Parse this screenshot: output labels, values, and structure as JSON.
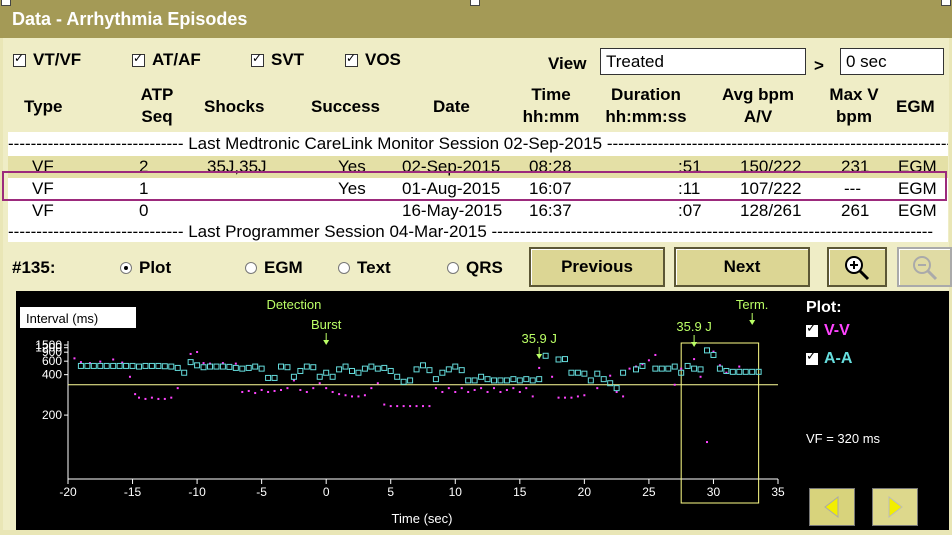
{
  "window": {
    "title": "Data - Arrhythmia Episodes"
  },
  "filters": [
    {
      "label": "VT/VF",
      "checked": true
    },
    {
      "label": "AT/AF",
      "checked": true
    },
    {
      "label": "SVT",
      "checked": true
    },
    {
      "label": "VOS",
      "checked": true
    }
  ],
  "view": {
    "label": "View",
    "value": "Treated",
    "gt": ">",
    "threshold": "0 sec"
  },
  "columns": {
    "type": "Type",
    "atp1": "ATP",
    "atp2": "Seq",
    "shocks": "Shocks",
    "success": "Success",
    "date": "Date",
    "time1": "Time",
    "time2": "hh:mm",
    "dur1": "Duration",
    "dur2": "hh:mm:ss",
    "avg1": "Avg bpm",
    "avg2": "A/V",
    "maxv1": "Max V",
    "maxv2": "bpm",
    "egm": "EGM"
  },
  "sessions": {
    "carelink": "Last Medtronic CareLink Monitor Session 02-Sep-2015",
    "programmer": "Last Programmer Session 04-Mar-2015"
  },
  "rows": [
    {
      "type": "VF",
      "atp": "2",
      "shocks": "35J,35J",
      "success": "Yes",
      "date": "02-Sep-2015",
      "time": "08:28",
      "duration": ":51",
      "avg": "150/222",
      "maxv": "231",
      "egm": "EGM"
    },
    {
      "type": "VF",
      "atp": "1",
      "shocks": "",
      "success": "Yes",
      "date": "01-Aug-2015",
      "time": "16:07",
      "duration": ":11",
      "avg": "107/222",
      "maxv": "---",
      "egm": "EGM"
    },
    {
      "type": "VF",
      "atp": "0",
      "shocks": "",
      "success": "",
      "date": "16-May-2015",
      "time": "16:37",
      "duration": ":07",
      "avg": "128/261",
      "maxv": "261",
      "egm": "EGM"
    }
  ],
  "episode": {
    "label": "#135:"
  },
  "display_modes": [
    {
      "label": "Plot",
      "selected": true
    },
    {
      "label": "EGM",
      "selected": false
    },
    {
      "label": "Text",
      "selected": false
    },
    {
      "label": "QRS",
      "selected": false
    }
  ],
  "buttons": {
    "previous": "Previous",
    "next": "Next",
    "zoom_in_icon": "zoom-in-icon",
    "zoom_out_icon": "zoom-out-icon"
  },
  "plot_legend": {
    "title": "Plot:",
    "vv": "V-V",
    "aa": "A-A",
    "vf_zone": "VF = 320 ms"
  },
  "colors": {
    "vv": "#ff44ff",
    "aa": "#66dddd",
    "annotation": "#bbff66",
    "window_title_bg": "#a49a56",
    "highlight": "#9c2a7c"
  },
  "chart_data": {
    "type": "scatter",
    "xlabel": "Time (sec)",
    "ylabel": "Interval (ms)",
    "xlim": [
      -20,
      35
    ],
    "x_ticks": [
      -20,
      -15,
      -10,
      -5,
      0,
      5,
      10,
      15,
      20,
      25,
      30,
      35
    ],
    "y_ticks": [
      200,
      400,
      600,
      900,
      1200,
      1500
    ],
    "y_scale": "reciprocal",
    "vf_threshold_ms": 320,
    "annotations": [
      {
        "text": "Detection",
        "x": -2.5
      },
      {
        "text": "Burst",
        "x": 0
      },
      {
        "text": "35.9 J",
        "x": 16.5
      },
      {
        "text": "35.9 J",
        "x": 28.5
      },
      {
        "text": "Term.",
        "x": 33
      }
    ],
    "series": [
      {
        "name": "V-V",
        "points": [
          [
            -19.5,
            670
          ],
          [
            -19,
            580
          ],
          [
            -18.3,
            560
          ],
          [
            -17.5,
            590
          ],
          [
            -16.5,
            640
          ],
          [
            -15.8,
            570
          ],
          [
            -15.2,
            380
          ],
          [
            -14.8,
            270
          ],
          [
            -14.5,
            255
          ],
          [
            -14,
            250
          ],
          [
            -13.5,
            255
          ],
          [
            -13,
            250
          ],
          [
            -12.5,
            250
          ],
          [
            -12,
            255
          ],
          [
            -11.5,
            300
          ],
          [
            -10.5,
            820
          ],
          [
            -10,
            910
          ],
          [
            -9.5,
            560
          ],
          [
            -9,
            550
          ],
          [
            -8,
            560
          ],
          [
            -7,
            550
          ],
          [
            -6.5,
            280
          ],
          [
            -6,
            285
          ],
          [
            -5.5,
            275
          ],
          [
            -5,
            290
          ],
          [
            -4.5,
            280
          ],
          [
            -4,
            285
          ],
          [
            -3.5,
            290
          ],
          [
            -3,
            300
          ],
          [
            -2.5,
            350
          ],
          [
            -2,
            290
          ],
          [
            -1.5,
            280
          ],
          [
            -1,
            300
          ],
          [
            -0.5,
            330
          ],
          [
            0,
            300
          ],
          [
            0.5,
            280
          ],
          [
            1,
            270
          ],
          [
            1.5,
            265
          ],
          [
            2,
            260
          ],
          [
            2.5,
            260
          ],
          [
            3,
            265
          ],
          [
            3.5,
            300
          ],
          [
            4,
            330
          ],
          [
            4.5,
            230
          ],
          [
            5,
            225
          ],
          [
            5.5,
            225
          ],
          [
            6,
            225
          ],
          [
            6.5,
            225
          ],
          [
            7,
            225
          ],
          [
            7.5,
            225
          ],
          [
            8,
            225
          ],
          [
            8.5,
            300
          ],
          [
            9,
            280
          ],
          [
            9.5,
            300
          ],
          [
            10,
            280
          ],
          [
            10.5,
            300
          ],
          [
            11,
            280
          ],
          [
            11.5,
            290
          ],
          [
            12,
            300
          ],
          [
            12.5,
            280
          ],
          [
            13,
            300
          ],
          [
            13.5,
            280
          ],
          [
            14,
            290
          ],
          [
            14.5,
            300
          ],
          [
            15,
            280
          ],
          [
            15.5,
            300
          ],
          [
            16,
            260
          ],
          [
            16.5,
            480
          ],
          [
            17.5,
            380
          ],
          [
            18,
            255
          ],
          [
            18.5,
            255
          ],
          [
            19,
            255
          ],
          [
            19.5,
            260
          ],
          [
            20,
            265
          ],
          [
            21,
            300
          ],
          [
            22,
            390
          ],
          [
            22.5,
            280
          ],
          [
            23,
            260
          ],
          [
            23.5,
            470
          ],
          [
            24,
            500
          ],
          [
            24.5,
            540
          ],
          [
            25,
            620
          ],
          [
            25.5,
            780
          ],
          [
            27,
            320
          ],
          [
            27.5,
            470
          ],
          [
            28.5,
            650
          ],
          [
            29,
            380
          ],
          [
            29.5,
            150
          ],
          [
            30,
            930
          ],
          [
            30.5,
            520
          ],
          [
            31,
            420
          ],
          [
            32,
            500
          ]
        ]
      },
      {
        "name": "A-A",
        "points": [
          [
            -19,
            510
          ],
          [
            -18.5,
            510
          ],
          [
            -18,
            510
          ],
          [
            -17.5,
            510
          ],
          [
            -17,
            510
          ],
          [
            -16.5,
            510
          ],
          [
            -16,
            510
          ],
          [
            -15.5,
            510
          ],
          [
            -15,
            510
          ],
          [
            -14.5,
            500
          ],
          [
            -14,
            510
          ],
          [
            -13.5,
            510
          ],
          [
            -13,
            510
          ],
          [
            -12.5,
            505
          ],
          [
            -12,
            500
          ],
          [
            -11.5,
            480
          ],
          [
            -11,
            420
          ],
          [
            -10.5,
            580
          ],
          [
            -10,
            520
          ],
          [
            -9.5,
            490
          ],
          [
            -9,
            500
          ],
          [
            -8.5,
            500
          ],
          [
            -8,
            500
          ],
          [
            -7.5,
            495
          ],
          [
            -7,
            480
          ],
          [
            -6.5,
            470
          ],
          [
            -6,
            480
          ],
          [
            -5.5,
            500
          ],
          [
            -5,
            470
          ],
          [
            -4.5,
            370
          ],
          [
            -4,
            370
          ],
          [
            -3.5,
            500
          ],
          [
            -3,
            490
          ],
          [
            -2.5,
            380
          ],
          [
            -2,
            440
          ],
          [
            -1.5,
            500
          ],
          [
            -1,
            490
          ],
          [
            -0.5,
            380
          ],
          [
            0,
            420
          ],
          [
            0.5,
            380
          ],
          [
            1,
            460
          ],
          [
            1.5,
            500
          ],
          [
            2,
            440
          ],
          [
            2.5,
            420
          ],
          [
            3,
            470
          ],
          [
            3.5,
            500
          ],
          [
            4,
            470
          ],
          [
            4.5,
            480
          ],
          [
            5,
            440
          ],
          [
            5.5,
            380
          ],
          [
            6,
            340
          ],
          [
            6.5,
            350
          ],
          [
            7,
            460
          ],
          [
            7.5,
            520
          ],
          [
            8,
            450
          ],
          [
            8.5,
            360
          ],
          [
            9,
            420
          ],
          [
            9.5,
            460
          ],
          [
            10,
            500
          ],
          [
            10.5,
            450
          ],
          [
            11,
            350
          ],
          [
            11.5,
            350
          ],
          [
            12,
            380
          ],
          [
            12.5,
            360
          ],
          [
            13,
            350
          ],
          [
            13.5,
            350
          ],
          [
            14,
            350
          ],
          [
            14.5,
            360
          ],
          [
            15,
            350
          ],
          [
            15.5,
            360
          ],
          [
            16,
            350
          ],
          [
            16.5,
            360
          ],
          [
            17,
            750
          ],
          [
            18,
            640
          ],
          [
            18.5,
            650
          ],
          [
            19,
            420
          ],
          [
            19.5,
            420
          ],
          [
            20,
            410
          ],
          [
            20.5,
            350
          ],
          [
            21,
            410
          ],
          [
            21.5,
            360
          ],
          [
            22,
            330
          ],
          [
            22.5,
            300
          ],
          [
            23,
            420
          ],
          [
            24,
            460
          ],
          [
            24.5,
            510
          ],
          [
            25.5,
            470
          ],
          [
            26,
            470
          ],
          [
            26.5,
            470
          ],
          [
            27,
            500
          ],
          [
            27.5,
            420
          ],
          [
            28,
            510
          ],
          [
            28.5,
            470
          ],
          [
            29,
            460
          ],
          [
            29.5,
            1000
          ],
          [
            30,
            780
          ],
          [
            30.5,
            470
          ],
          [
            31,
            440
          ],
          [
            31.5,
            430
          ],
          [
            32,
            430
          ],
          [
            32.5,
            430
          ],
          [
            33,
            430
          ],
          [
            33.5,
            430
          ]
        ]
      }
    ]
  }
}
